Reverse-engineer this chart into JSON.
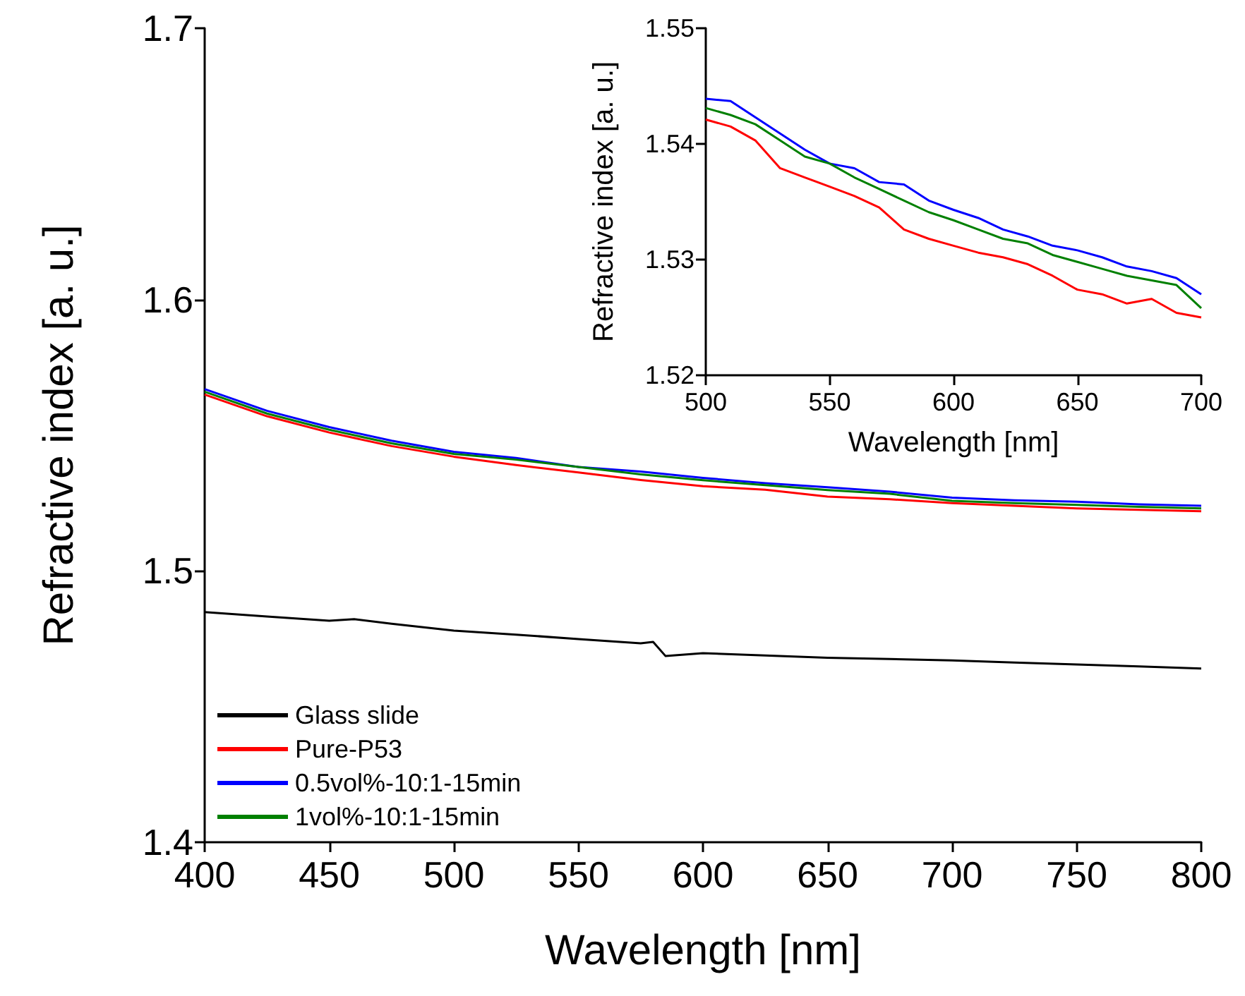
{
  "chart_data": [
    {
      "type": "line",
      "xlabel": "Wavelength [nm]",
      "ylabel": "Refractive index [a. u.]",
      "xlim": [
        400,
        800
      ],
      "ylim": [
        1.4,
        1.7
      ],
      "xticks": [
        400,
        450,
        500,
        550,
        600,
        650,
        700,
        750,
        800
      ],
      "yticks": [
        1.4,
        1.5,
        1.6,
        1.7
      ],
      "grid": false,
      "legend": "bottom left",
      "marker": "none",
      "line_style": "solid",
      "series": [
        {
          "name": "Glass slide",
          "color": "#000000",
          "x": [
            400,
            425,
            450,
            460,
            475,
            500,
            525,
            550,
            575,
            580,
            585,
            600,
            625,
            650,
            675,
            700,
            725,
            750,
            775,
            800
          ],
          "values": [
            1.4848,
            1.4832,
            1.4816,
            1.4822,
            1.4805,
            1.478,
            1.4765,
            1.4749,
            1.4733,
            1.4738,
            1.4686,
            1.4697,
            1.4688,
            1.468,
            1.4675,
            1.467,
            1.4662,
            1.4655,
            1.4648,
            1.464
          ]
        },
        {
          "name": "Pure-P53",
          "color": "#ff0000",
          "x": [
            400,
            425,
            450,
            475,
            500,
            525,
            550,
            575,
            600,
            625,
            650,
            675,
            700,
            725,
            750,
            775,
            800
          ],
          "values": [
            1.565,
            1.557,
            1.551,
            1.546,
            1.5421,
            1.539,
            1.5363,
            1.5335,
            1.5312,
            1.5299,
            1.5274,
            1.5264,
            1.525,
            1.524,
            1.523,
            1.5225,
            1.522
          ]
        },
        {
          "name": "0.5vol%-10:1-15min",
          "color": "#0000ff",
          "x": [
            400,
            425,
            450,
            475,
            500,
            525,
            550,
            575,
            600,
            625,
            650,
            675,
            700,
            725,
            750,
            775,
            800
          ],
          "values": [
            1.567,
            1.559,
            1.553,
            1.548,
            1.5439,
            1.5416,
            1.5383,
            1.5366,
            1.5343,
            1.5323,
            1.5308,
            1.5292,
            1.527,
            1.526,
            1.5255,
            1.5245,
            1.524
          ]
        },
        {
          "name": "1vol%-10:1-15min",
          "color": "#008000",
          "x": [
            400,
            425,
            450,
            475,
            500,
            525,
            550,
            575,
            600,
            625,
            650,
            675,
            700,
            725,
            750,
            775,
            800
          ],
          "values": [
            1.566,
            1.558,
            1.552,
            1.547,
            1.5431,
            1.541,
            1.5383,
            1.5356,
            1.5334,
            1.5316,
            1.5298,
            1.5284,
            1.5258,
            1.525,
            1.5243,
            1.5236,
            1.523
          ]
        }
      ]
    },
    {
      "type": "line",
      "xlabel": "Wavelength [nm]",
      "ylabel": "Refractive index [a. u.]",
      "xlim": [
        500,
        700
      ],
      "ylim": [
        1.52,
        1.55
      ],
      "xticks": [
        500,
        550,
        600,
        650,
        700
      ],
      "yticks": [
        1.52,
        1.53,
        1.54,
        1.55
      ],
      "grid": false,
      "legend": false,
      "marker": "none",
      "line_style": "solid",
      "series": [
        {
          "color": "#ff0000",
          "x": [
            500,
            510,
            520,
            530,
            540,
            550,
            560,
            570,
            580,
            590,
            600,
            610,
            620,
            630,
            640,
            650,
            660,
            670,
            680,
            690,
            700
          ],
          "values": [
            1.5421,
            1.5415,
            1.5403,
            1.5379,
            1.5371,
            1.5363,
            1.5355,
            1.5345,
            1.5326,
            1.5318,
            1.5312,
            1.5306,
            1.5302,
            1.5296,
            1.5286,
            1.5274,
            1.527,
            1.5262,
            1.5266,
            1.5254,
            1.525
          ]
        },
        {
          "color": "#0000ff",
          "x": [
            500,
            510,
            520,
            530,
            540,
            550,
            560,
            570,
            580,
            590,
            600,
            610,
            620,
            630,
            640,
            650,
            660,
            670,
            680,
            690,
            700
          ],
          "values": [
            1.5439,
            1.5437,
            1.5423,
            1.5409,
            1.5395,
            1.5383,
            1.5379,
            1.5367,
            1.5365,
            1.5351,
            1.5343,
            1.5336,
            1.5326,
            1.532,
            1.5312,
            1.5308,
            1.5302,
            1.5294,
            1.529,
            1.5284,
            1.527
          ]
        },
        {
          "color": "#008000",
          "x": [
            500,
            510,
            520,
            530,
            540,
            550,
            560,
            570,
            580,
            590,
            600,
            610,
            620,
            630,
            640,
            650,
            660,
            670,
            680,
            690,
            700
          ],
          "values": [
            1.5431,
            1.5425,
            1.5417,
            1.5403,
            1.5389,
            1.5383,
            1.5371,
            1.5361,
            1.5351,
            1.5341,
            1.5334,
            1.5326,
            1.5318,
            1.5314,
            1.5304,
            1.5298,
            1.5292,
            1.5286,
            1.5282,
            1.5278,
            1.5258
          ]
        }
      ]
    }
  ]
}
